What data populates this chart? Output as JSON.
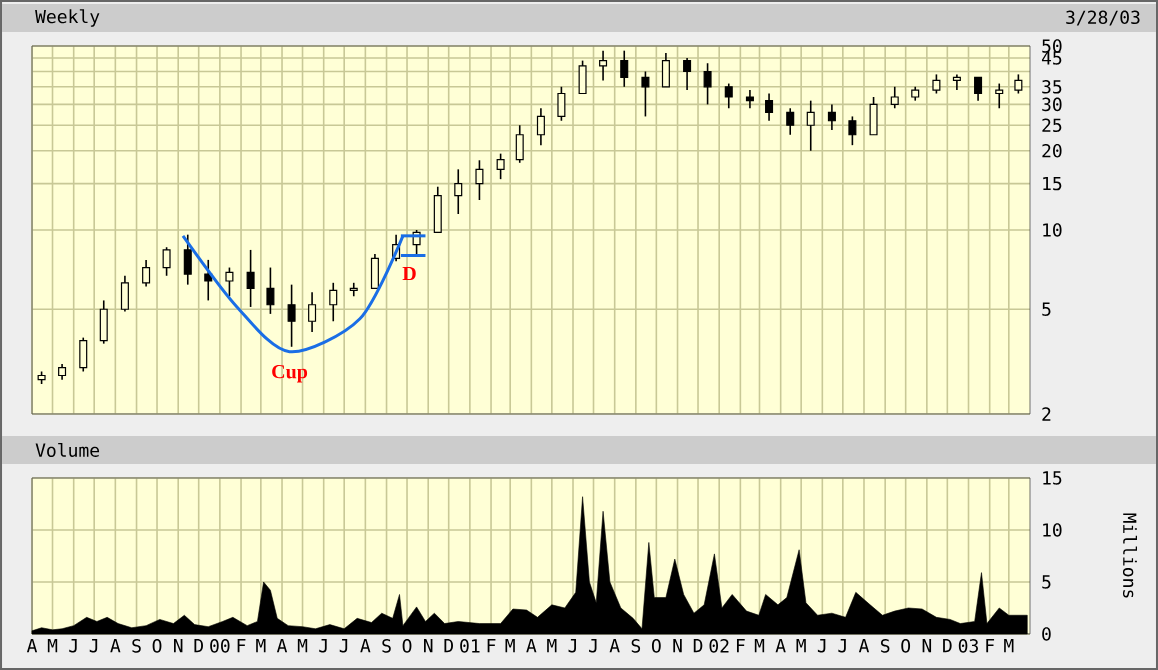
{
  "chart_data": [
    {
      "type": "candlestick",
      "title": "Weekly",
      "subtitle": "3/28/03",
      "color": "#000000",
      "log": "y",
      "grid": true,
      "tick_labels": "y",
      "x": [
        "1999-04-15",
        "1999-05-15",
        "1999-06-15",
        "1999-07-15",
        "1999-08-15",
        "1999-09-15",
        "1999-10-15",
        "1999-11-15",
        "1999-12-15",
        "2000-01-15",
        "2000-02-15",
        "2000-03-15",
        "2000-04-15",
        "2000-05-15",
        "2000-06-15",
        "2000-07-15",
        "2000-08-15",
        "2000-09-15",
        "2000-10-15",
        "2000-11-15",
        "2000-12-15",
        "2001-01-15",
        "2001-02-15",
        "2001-03-15",
        "2001-04-15",
        "2001-05-15",
        "2001-06-15",
        "2001-07-15",
        "2001-08-15",
        "2001-09-15",
        "2001-10-15",
        "2001-11-15",
        "2001-12-15",
        "2002-01-15",
        "2002-02-15",
        "2002-03-15",
        "2002-04-15",
        "2002-05-15",
        "2002-06-15",
        "2002-07-15",
        "2002-08-15",
        "2002-09-15",
        "2002-10-15",
        "2002-11-15",
        "2002-12-15",
        "2003-01-15",
        "2003-02-15",
        "2003-03-15"
      ],
      "ohlc": [
        [
          2.7,
          2.9,
          2.6,
          2.8
        ],
        [
          2.8,
          3.1,
          2.7,
          3.0
        ],
        [
          3.0,
          3.9,
          2.9,
          3.8
        ],
        [
          3.8,
          5.4,
          3.7,
          5.0
        ],
        [
          5.0,
          6.7,
          4.9,
          6.3
        ],
        [
          6.3,
          7.7,
          6.1,
          7.2
        ],
        [
          7.2,
          8.6,
          6.7,
          8.4
        ],
        [
          8.4,
          9.6,
          6.2,
          6.8
        ],
        [
          6.8,
          7.7,
          5.4,
          6.4
        ],
        [
          6.4,
          7.2,
          5.6,
          6.9
        ],
        [
          6.9,
          8.4,
          5.1,
          6.0
        ],
        [
          6.0,
          7.2,
          4.8,
          5.2
        ],
        [
          5.2,
          6.2,
          3.6,
          4.5
        ],
        [
          4.5,
          5.8,
          4.1,
          5.2
        ],
        [
          5.2,
          6.3,
          4.5,
          5.9
        ],
        [
          5.9,
          6.3,
          5.6,
          6.0
        ],
        [
          6.0,
          8.1,
          6.0,
          7.8
        ],
        [
          7.8,
          9.6,
          7.6,
          8.8
        ],
        [
          8.8,
          10,
          8.1,
          9.8
        ],
        [
          9.8,
          14.6,
          9.8,
          13.5
        ],
        [
          13.5,
          17,
          11.5,
          15
        ],
        [
          15,
          18.4,
          13,
          17
        ],
        [
          17,
          19.5,
          15.6,
          18.5
        ],
        [
          18.5,
          25,
          18,
          23
        ],
        [
          23,
          29,
          21,
          27
        ],
        [
          27,
          35,
          26,
          33
        ],
        [
          33,
          44,
          33,
          42
        ],
        [
          42,
          48,
          37,
          44
        ],
        [
          44,
          48,
          35,
          38
        ],
        [
          38,
          40,
          27,
          35
        ],
        [
          35,
          47,
          35,
          44
        ],
        [
          44,
          45,
          34,
          40
        ],
        [
          40,
          43,
          30,
          35
        ],
        [
          35,
          36,
          29,
          32
        ],
        [
          32,
          34,
          29,
          31
        ],
        [
          31,
          33,
          26,
          28
        ],
        [
          28,
          29,
          23,
          25
        ],
        [
          25,
          31,
          20,
          28
        ],
        [
          28,
          30,
          24,
          26
        ],
        [
          26,
          27,
          21,
          23
        ],
        [
          23,
          32,
          23,
          30
        ],
        [
          30,
          35,
          29,
          32
        ],
        [
          32,
          35,
          31,
          34
        ],
        [
          34,
          39,
          33,
          37
        ],
        [
          37,
          39,
          34,
          38
        ],
        [
          38,
          38,
          31,
          33
        ],
        [
          33,
          36,
          29,
          34
        ],
        [
          34,
          39,
          33,
          37
        ]
      ],
      "xlim": [
        "1999-04-01",
        "2003-04-01"
      ],
      "ylim": [
        2,
        50
      ],
      "yticks": [
        2,
        5,
        10,
        15,
        20,
        25,
        30,
        35,
        {
          "value": 40,
          "label": null
        },
        45,
        50
      ],
      "xticks": [
        {
          "value": "1999-04-01",
          "label": null
        },
        {
          "value": "1999-05-01",
          "label": null
        },
        {
          "value": "1999-06-01",
          "label": null
        },
        {
          "value": "1999-07-01",
          "label": null
        },
        {
          "value": "1999-08-01",
          "label": null
        },
        {
          "value": "1999-09-01",
          "label": null
        },
        {
          "value": "1999-10-01",
          "label": null
        },
        {
          "value": "1999-11-01",
          "label": null
        },
        {
          "value": "1999-12-01",
          "label": null
        },
        {
          "value": "2000-01-01",
          "label": null
        },
        {
          "value": "2000-02-01",
          "label": null
        },
        {
          "value": "2000-03-01",
          "label": null
        },
        {
          "value": "2000-04-01",
          "label": null
        },
        {
          "value": "2000-05-01",
          "label": null
        },
        {
          "value": "2000-06-01",
          "label": null
        },
        {
          "value": "2000-07-01",
          "label": null
        },
        {
          "value": "2000-08-01",
          "label": null
        },
        {
          "value": "2000-09-01",
          "label": null
        },
        {
          "value": "2000-10-01",
          "label": null
        },
        {
          "value": "2000-11-01",
          "label": null
        },
        {
          "value": "2000-12-01",
          "label": null
        },
        {
          "value": "2001-01-01",
          "label": null
        },
        {
          "value": "2001-02-01",
          "label": null
        },
        {
          "value": "2001-03-01",
          "label": null
        },
        {
          "value": "2001-04-01",
          "label": null
        },
        {
          "value": "2001-05-01",
          "label": null
        },
        {
          "value": "2001-06-01",
          "label": null
        },
        {
          "value": "2001-07-01",
          "label": null
        },
        {
          "value": "2001-08-01",
          "label": null
        },
        {
          "value": "2001-09-01",
          "label": null
        },
        {
          "value": "2001-10-01",
          "label": null
        },
        {
          "value": "2001-11-01",
          "label": null
        },
        {
          "value": "2001-12-01",
          "label": null
        },
        {
          "value": "2002-01-01",
          "label": null
        },
        {
          "value": "2002-02-01",
          "label": null
        },
        {
          "value": "2002-03-01",
          "label": null
        },
        {
          "value": "2002-04-01",
          "label": null
        },
        {
          "value": "2002-05-01",
          "label": null
        },
        {
          "value": "2002-06-01",
          "label": null
        },
        {
          "value": "2002-07-01",
          "label": null
        },
        {
          "value": "2002-08-01",
          "label": null
        },
        {
          "value": "2002-09-01",
          "label": null
        },
        {
          "value": "2002-10-01",
          "label": null
        },
        {
          "value": "2002-11-01",
          "label": null
        },
        {
          "value": "2002-12-01",
          "label": null
        },
        {
          "value": "2003-01-01",
          "label": null
        },
        {
          "value": "2003-02-01",
          "label": null
        },
        {
          "value": "2003-03-01",
          "label": null
        }
      ],
      "series": [
        {
          "type": "line",
          "color": "#1a6ee6",
          "x": [
            "1999-11-08",
            "2000-01-26",
            "2000-04-12",
            "2000-07-24",
            "2000-09-25"
          ],
          "values": [
            9.5,
            5.1,
            3.45,
            4.6,
            9.5
          ]
        },
        {
          "type": "line",
          "color": "#1a6ee6",
          "x": [
            "2000-09-22",
            "2000-10-28"
          ],
          "values": [
            9.5,
            9.5
          ]
        },
        {
          "type": "line",
          "color": "#1a6ee6",
          "x": [
            "2000-09-22",
            "2000-10-28"
          ],
          "values": [
            8.0,
            8.0
          ]
        }
      ],
      "annotations": [
        {
          "text": "Cup",
          "x": "2000-04-12",
          "y": 3.45
        },
        {
          "text": "D",
          "x": "2000-10-28",
          "y": 8.0
        }
      ]
    },
    {
      "type": "area",
      "title": "Volume",
      "ylabel": "Millions",
      "grid": true,
      "series": [
        {
          "color": "#000000",
          "x": [
            "1999-04-01",
            "1999-04-15",
            "1999-05-01",
            "1999-05-15",
            "1999-06-01",
            "1999-06-20",
            "1999-07-05",
            "1999-07-20",
            "1999-08-05",
            "1999-08-25",
            "1999-09-15",
            "1999-10-05",
            "1999-10-25",
            "1999-11-10",
            "1999-11-25",
            "1999-12-15",
            "2000-01-05",
            "2000-01-20",
            "2000-02-10",
            "2000-02-25",
            "2000-03-05",
            "2000-03-15",
            "2000-03-25",
            "2000-04-10",
            "2000-05-01",
            "2000-05-20",
            "2000-06-10",
            "2000-07-01",
            "2000-07-20",
            "2000-08-10",
            "2000-08-25",
            "2000-09-10",
            "2000-09-20",
            "2000-09-25",
            "2000-10-15",
            "2000-10-28",
            "2000-11-10",
            "2000-11-25",
            "2000-12-15",
            "2001-01-15",
            "2001-02-15",
            "2001-03-05",
            "2001-03-25",
            "2001-04-10",
            "2001-05-01",
            "2001-05-20",
            "2001-06-05",
            "2001-06-15",
            "2001-06-25",
            "2001-07-05",
            "2001-07-15",
            "2001-07-25",
            "2001-08-10",
            "2001-08-28",
            "2001-09-10",
            "2001-09-20",
            "2001-09-28",
            "2001-10-15",
            "2001-10-28",
            "2001-11-10",
            "2001-11-25",
            "2001-12-10",
            "2001-12-25",
            "2002-01-05",
            "2002-01-20",
            "2002-02-10",
            "2002-02-28",
            "2002-03-10",
            "2002-03-28",
            "2002-04-10",
            "2002-04-28",
            "2002-05-08",
            "2002-05-25",
            "2002-06-15",
            "2002-07-05",
            "2002-07-20",
            "2002-08-10",
            "2002-08-28",
            "2002-09-15",
            "2002-10-05",
            "2002-10-25",
            "2002-11-15",
            "2002-12-05",
            "2002-12-20",
            "2003-01-10",
            "2003-01-20",
            "2003-01-28",
            "2003-02-15",
            "2003-03-01",
            "2003-03-28"
          ],
          "values": [
            0.3,
            0.6,
            0.4,
            0.5,
            0.8,
            1.6,
            1.2,
            1.6,
            1.0,
            0.6,
            0.8,
            1.4,
            1.0,
            1.8,
            0.9,
            0.7,
            1.2,
            1.6,
            0.8,
            1.2,
            5.0,
            4.2,
            1.5,
            0.8,
            0.7,
            0.5,
            0.9,
            0.5,
            1.5,
            1.1,
            2.0,
            1.5,
            3.8,
            0.8,
            2.6,
            1.2,
            2.0,
            1.0,
            1.2,
            1.0,
            1.0,
            2.4,
            2.3,
            1.6,
            2.8,
            2.5,
            4.0,
            13.2,
            5.0,
            3.0,
            11.8,
            5.0,
            2.5,
            1.5,
            0.5,
            8.8,
            3.5,
            3.5,
            7.2,
            3.8,
            2.0,
            2.8,
            7.7,
            2.5,
            3.8,
            2.2,
            1.8,
            3.8,
            2.8,
            3.5,
            8.1,
            3.0,
            1.8,
            2.0,
            1.6,
            4.0,
            2.8,
            1.8,
            2.2,
            2.5,
            2.4,
            1.6,
            1.4,
            1.0,
            1.2,
            5.9,
            1.0,
            2.5,
            1.8,
            1.8
          ]
        }
      ],
      "xlim": [
        "1999-04-01",
        "2003-04-01"
      ],
      "ylim": [
        0,
        15
      ],
      "yticks": [
        0,
        5,
        10,
        15
      ],
      "xticks": [
        {
          "value": "1999-04-01",
          "label": "A"
        },
        {
          "value": "1999-05-01",
          "label": "M"
        },
        {
          "value": "1999-06-01",
          "label": "J"
        },
        {
          "value": "1999-07-01",
          "label": "J"
        },
        {
          "value": "1999-08-01",
          "label": "A"
        },
        {
          "value": "1999-09-01",
          "label": "S"
        },
        {
          "value": "1999-10-01",
          "label": "O"
        },
        {
          "value": "1999-11-01",
          "label": "N"
        },
        {
          "value": "1999-12-01",
          "label": "D"
        },
        {
          "value": "2000-01-01",
          "label": "00"
        },
        {
          "value": "2000-02-01",
          "label": "F"
        },
        {
          "value": "2000-03-01",
          "label": "M"
        },
        {
          "value": "2000-04-01",
          "label": "A"
        },
        {
          "value": "2000-05-01",
          "label": "M"
        },
        {
          "value": "2000-06-01",
          "label": "J"
        },
        {
          "value": "2000-07-01",
          "label": "J"
        },
        {
          "value": "2000-08-01",
          "label": "A"
        },
        {
          "value": "2000-09-01",
          "label": "S"
        },
        {
          "value": "2000-10-01",
          "label": "O"
        },
        {
          "value": "2000-11-01",
          "label": "N"
        },
        {
          "value": "2000-12-01",
          "label": "D"
        },
        {
          "value": "2001-01-01",
          "label": "01"
        },
        {
          "value": "2001-02-01",
          "label": "F"
        },
        {
          "value": "2001-03-01",
          "label": "M"
        },
        {
          "value": "2001-04-01",
          "label": "A"
        },
        {
          "value": "2001-05-01",
          "label": "M"
        },
        {
          "value": "2001-06-01",
          "label": "J"
        },
        {
          "value": "2001-07-01",
          "label": "J"
        },
        {
          "value": "2001-08-01",
          "label": "A"
        },
        {
          "value": "2001-09-01",
          "label": "S"
        },
        {
          "value": "2001-10-01",
          "label": "O"
        },
        {
          "value": "2001-11-01",
          "label": "N"
        },
        {
          "value": "2001-12-01",
          "label": "D"
        },
        {
          "value": "2002-01-01",
          "label": "02"
        },
        {
          "value": "2002-02-01",
          "label": "F"
        },
        {
          "value": "2002-03-01",
          "label": "M"
        },
        {
          "value": "2002-04-01",
          "label": "A"
        },
        {
          "value": "2002-05-01",
          "label": "M"
        },
        {
          "value": "2002-06-01",
          "label": "J"
        },
        {
          "value": "2002-07-01",
          "label": "J"
        },
        {
          "value": "2002-08-01",
          "label": "A"
        },
        {
          "value": "2002-09-01",
          "label": "S"
        },
        {
          "value": "2002-10-01",
          "label": "O"
        },
        {
          "value": "2002-11-01",
          "label": "N"
        },
        {
          "value": "2002-12-01",
          "label": "D"
        },
        {
          "value": "2003-01-01",
          "label": "03"
        },
        {
          "value": "2003-02-01",
          "label": "F"
        },
        {
          "value": "2003-03-01",
          "label": "M"
        }
      ]
    }
  ]
}
